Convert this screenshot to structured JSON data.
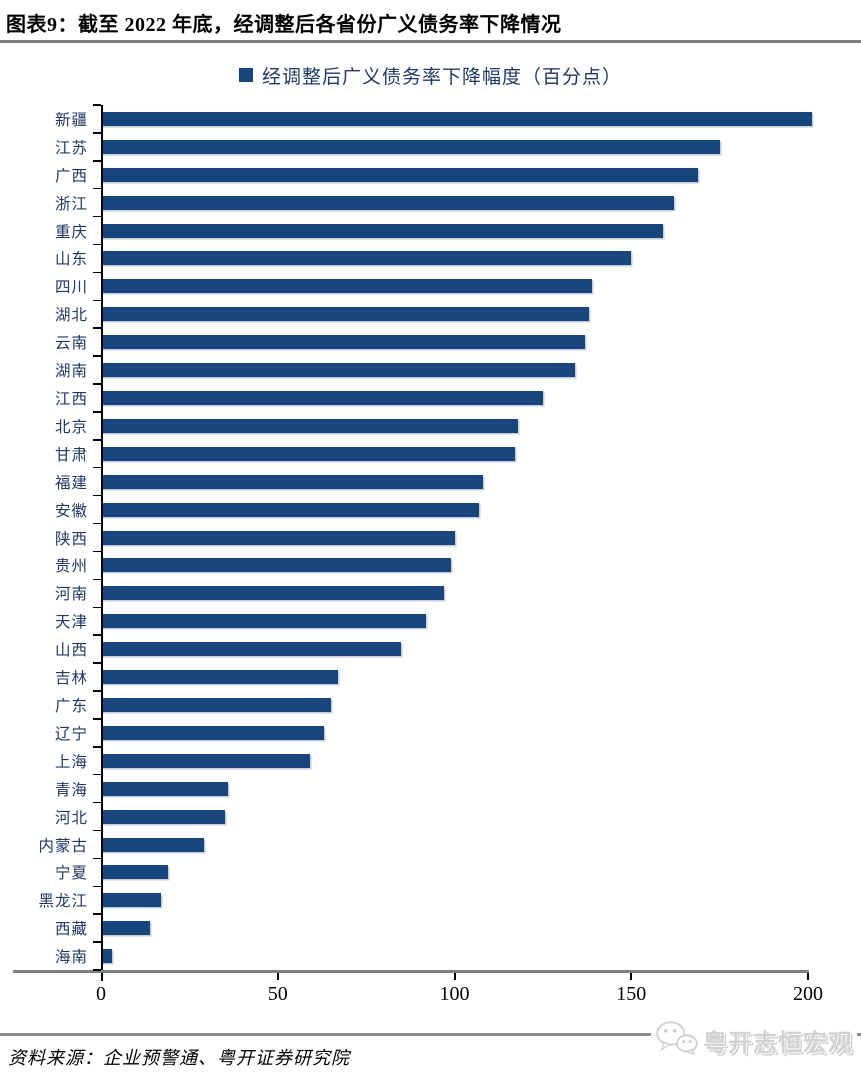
{
  "header": {
    "title": "图表9：截至 2022 年底，经调整后各省份广义债务率下降情况"
  },
  "legend": {
    "label": "经调整后广义债务率下降幅度（百分点）"
  },
  "chart_data": {
    "type": "bar",
    "orientation": "horizontal",
    "title": "截至 2022 年底，经调整后各省份广义债务率下降情况",
    "legend": [
      "经调整后广义债务率下降幅度（百分点）"
    ],
    "unit": "百分点",
    "categories": [
      "新疆",
      "江苏",
      "广西",
      "浙江",
      "重庆",
      "山东",
      "四川",
      "湖北",
      "云南",
      "湖南",
      "江西",
      "北京",
      "甘肃",
      "福建",
      "安徽",
      "陕西",
      "贵州",
      "河南",
      "天津",
      "山西",
      "吉林",
      "广东",
      "辽宁",
      "上海",
      "青海",
      "河北",
      "内蒙古",
      "宁夏",
      "黑龙江",
      "西藏",
      "海南"
    ],
    "values": [
      201,
      175,
      169,
      162,
      159,
      150,
      139,
      138,
      137,
      134,
      125,
      118,
      117,
      108,
      107,
      100,
      99,
      97,
      92,
      85,
      67,
      65,
      63,
      59,
      36,
      35,
      29,
      19,
      17,
      14,
      3
    ],
    "xlim": [
      0,
      200
    ],
    "x_ticks": [
      0,
      50,
      100,
      150,
      200
    ],
    "grid": false,
    "legend_position": "top",
    "bar_color": "#17467F"
  },
  "footer": {
    "source": "资料来源：企业预警通、粤开证券研究院",
    "logo_text": "粤开志恒宏观",
    "logo_icon": "wechat-icon"
  },
  "colors": {
    "bar": "#17467F",
    "category_label": "#1F3864",
    "axis_line_x": "#808080",
    "axis_line_y": "#000000",
    "title_rule": "#7f7f7f",
    "brand_text": "#d2d2d2"
  }
}
